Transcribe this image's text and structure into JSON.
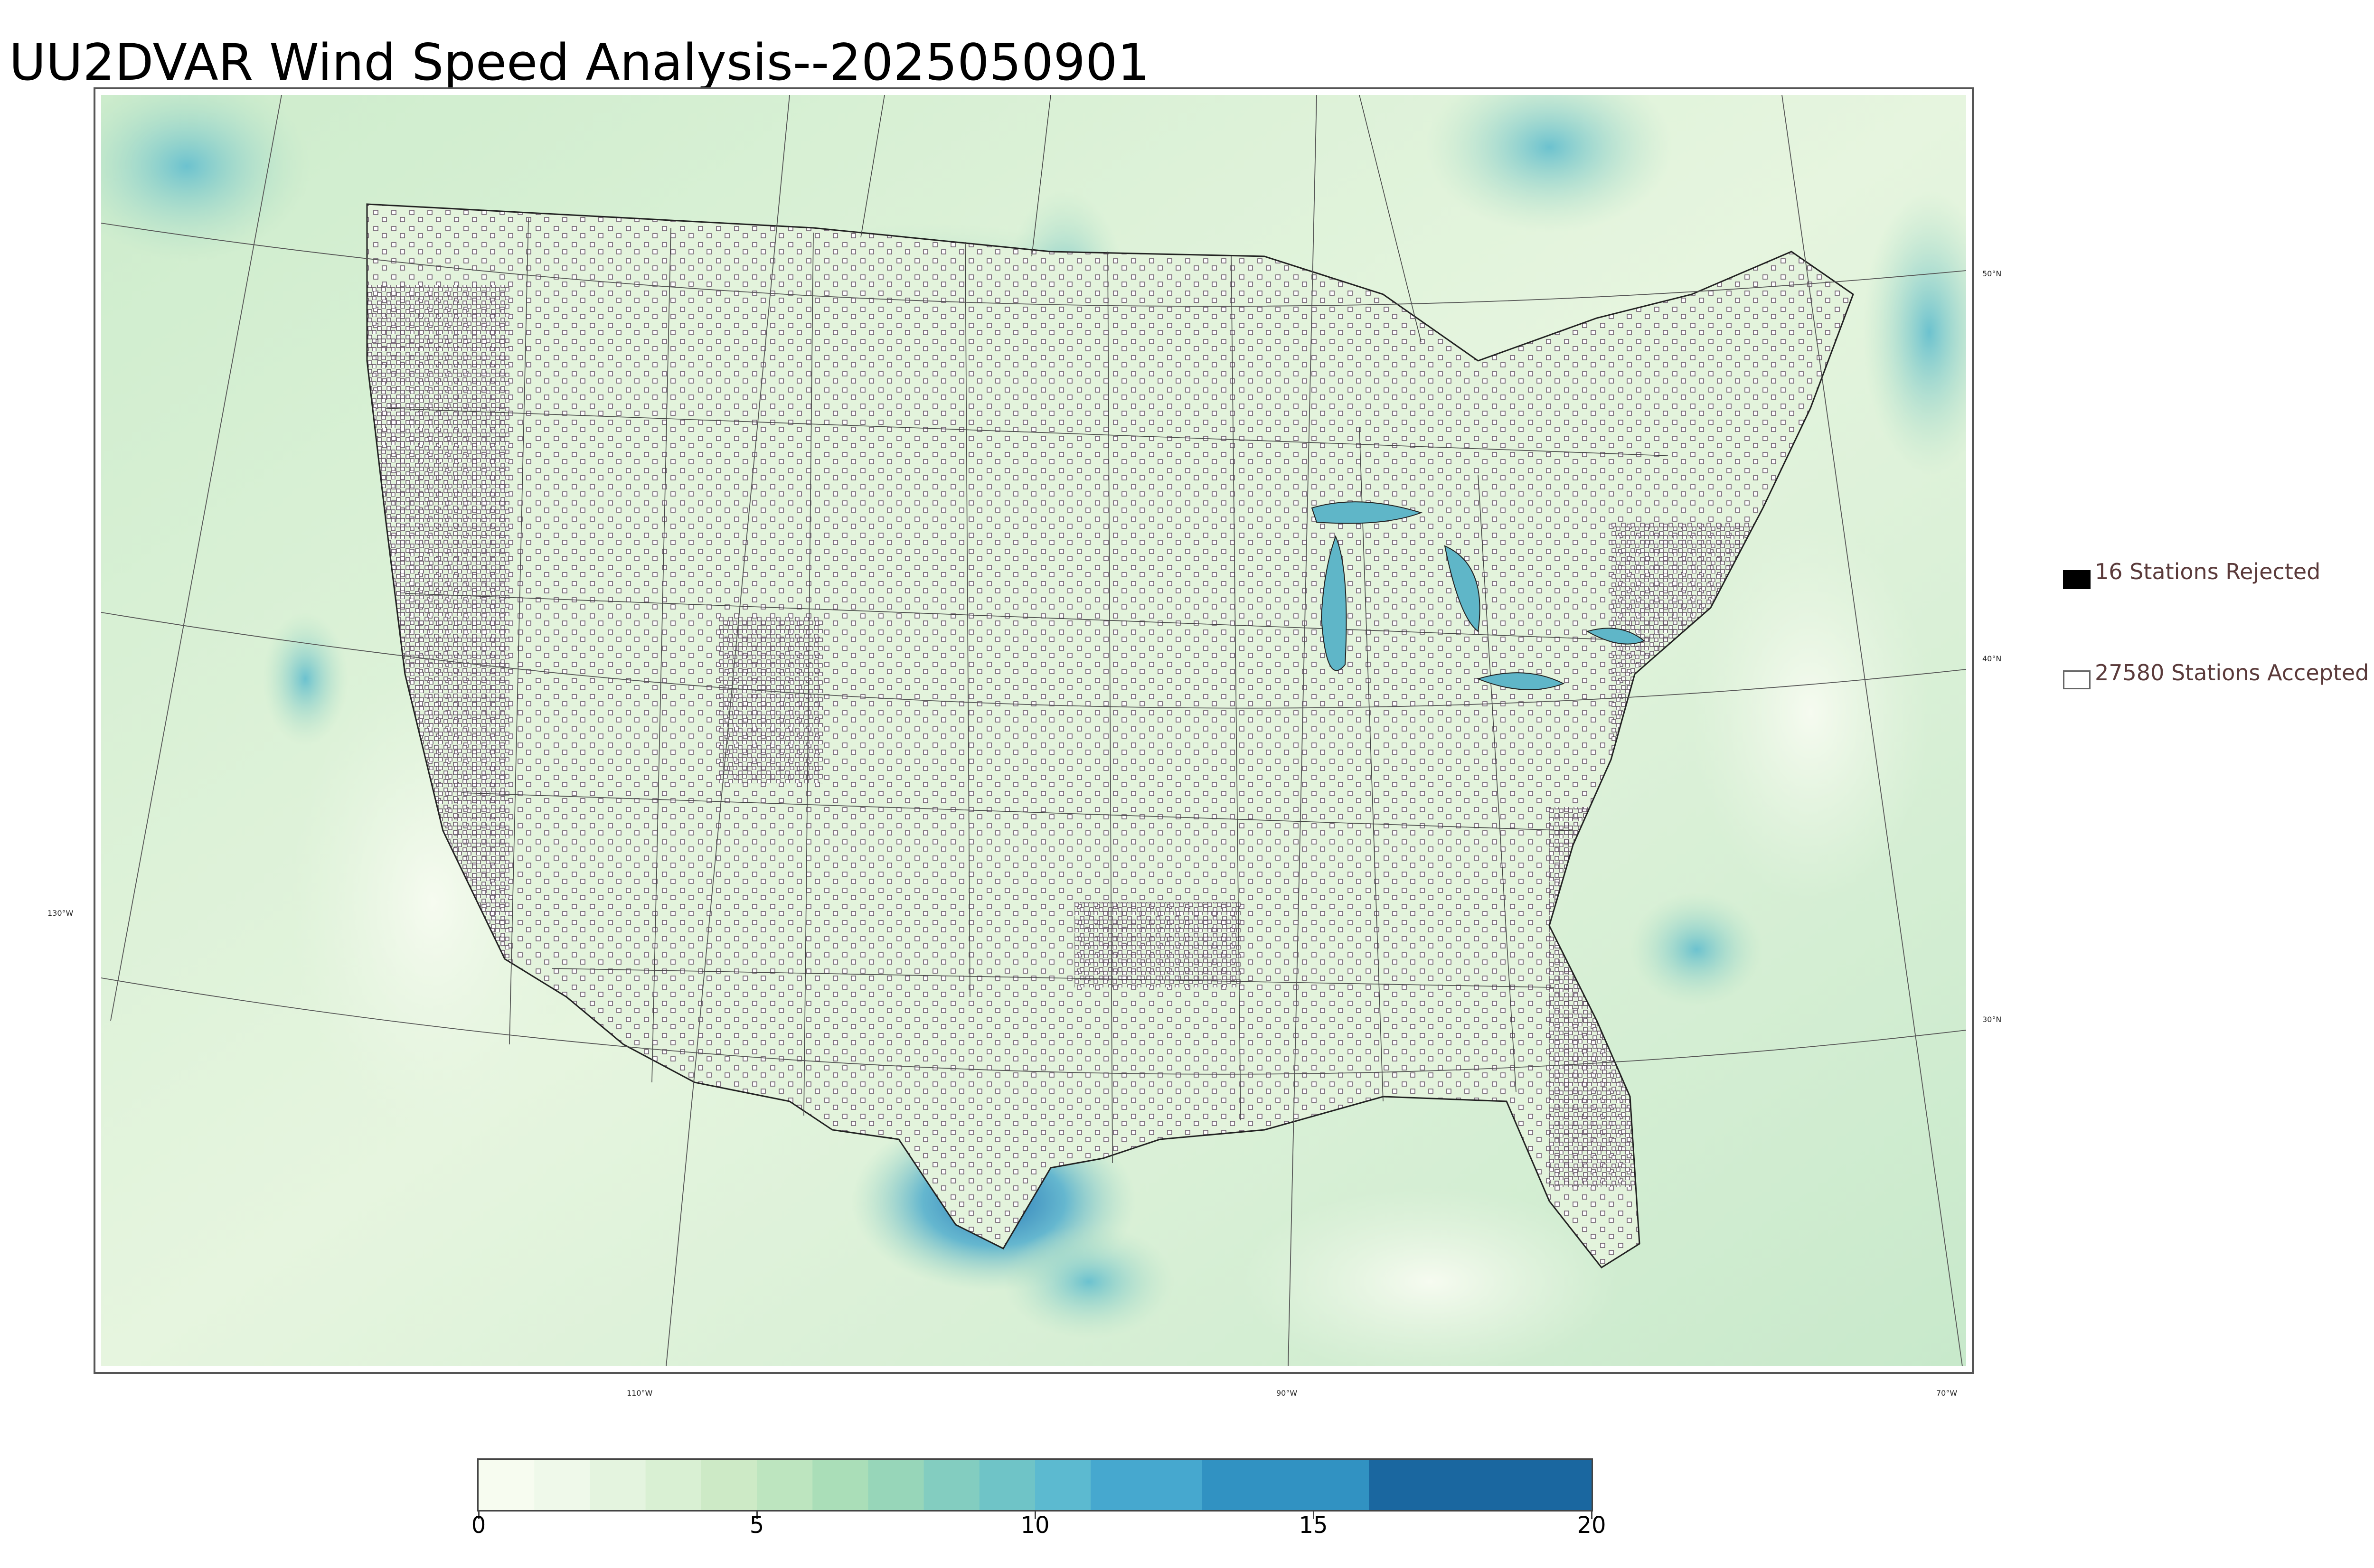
{
  "title": "UU2DVAR Wind Speed Analysis--2025050901",
  "map": {
    "lat_labels": [
      "50°N",
      "40°N",
      "30°N"
    ],
    "lon_labels": [
      "130°W",
      "110°W",
      "90°W",
      "70°W"
    ]
  },
  "legend": {
    "rejected_label": "16 Stations Rejected",
    "accepted_label": "27580 Stations Accepted",
    "rejected_color": "#000000",
    "accepted_color": "#ffffff"
  },
  "colorbar": {
    "ticks": [
      "0",
      "5",
      "10",
      "15",
      "20"
    ],
    "min": 0,
    "max": 20,
    "levels": [
      0,
      1,
      2,
      3,
      4,
      5,
      6,
      7,
      8,
      9,
      10,
      11,
      13,
      16,
      20
    ],
    "colors": [
      "#f7fcf0",
      "#eff9ea",
      "#e4f4df",
      "#d9f0d3",
      "#cdeac6",
      "#bde5bf",
      "#aadeb8",
      "#97d6b9",
      "#83cdc0",
      "#6fc4c7",
      "#5cbad0",
      "#46a8cf",
      "#3192c2",
      "#1a67a0"
    ]
  }
}
